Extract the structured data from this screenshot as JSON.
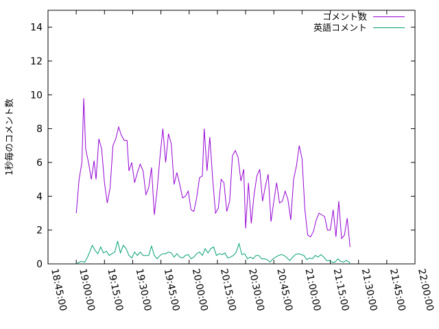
{
  "chart_data": {
    "type": "line",
    "ylabel": "1秒毎のコメント数",
    "xlabel": "",
    "ylim": [
      0,
      15
    ],
    "yticks": [
      0,
      2,
      4,
      6,
      8,
      10,
      12,
      14
    ],
    "xlim": [
      "18:45:00",
      "22:00:00"
    ],
    "xticks": [
      "18:45:00",
      "19:00:00",
      "19:15:00",
      "19:30:00",
      "19:45:00",
      "20:00:00",
      "20:15:00",
      "20:30:00",
      "20:45:00",
      "21:00:00",
      "21:15:00",
      "21:30:00",
      "21:45:00",
      "22:00:00"
    ],
    "legend_position": "top-right",
    "grid": false,
    "series": [
      {
        "name": "コメント数",
        "color": "#9400d3",
        "points": [
          [
            "19:00:00",
            3.0
          ],
          [
            "19:01:30",
            5.0
          ],
          [
            "19:03:00",
            6.0
          ],
          [
            "19:04:00",
            9.8
          ],
          [
            "19:05:00",
            6.8
          ],
          [
            "19:06:30",
            6.0
          ],
          [
            "19:08:00",
            5.0
          ],
          [
            "19:09:30",
            6.1
          ],
          [
            "19:10:30",
            5.0
          ],
          [
            "19:12:00",
            7.4
          ],
          [
            "19:13:30",
            6.8
          ],
          [
            "19:15:00",
            4.8
          ],
          [
            "19:16:30",
            3.6
          ],
          [
            "19:18:00",
            4.5
          ],
          [
            "19:19:30",
            7.0
          ],
          [
            "19:21:00",
            7.4
          ],
          [
            "19:22:30",
            8.1
          ],
          [
            "19:24:00",
            7.6
          ],
          [
            "19:25:30",
            7.3
          ],
          [
            "19:27:00",
            7.3
          ],
          [
            "19:28:00",
            5.5
          ],
          [
            "19:29:30",
            6.0
          ],
          [
            "19:31:00",
            4.8
          ],
          [
            "19:32:30",
            5.4
          ],
          [
            "19:34:00",
            5.9
          ],
          [
            "19:35:30",
            5.5
          ],
          [
            "19:37:00",
            4.1
          ],
          [
            "19:38:30",
            4.5
          ],
          [
            "19:40:00",
            5.7
          ],
          [
            "19:41:30",
            2.9
          ],
          [
            "19:43:00",
            4.4
          ],
          [
            "19:44:30",
            6.3
          ],
          [
            "19:46:00",
            8.0
          ],
          [
            "19:47:30",
            6.0
          ],
          [
            "19:49:00",
            7.7
          ],
          [
            "19:50:30",
            7.1
          ],
          [
            "19:52:00",
            4.7
          ],
          [
            "19:53:30",
            5.4
          ],
          [
            "19:55:00",
            4.7
          ],
          [
            "19:56:30",
            3.9
          ],
          [
            "19:58:00",
            4.0
          ],
          [
            "19:59:30",
            4.3
          ],
          [
            "20:01:00",
            3.2
          ],
          [
            "20:02:30",
            3.1
          ],
          [
            "20:04:00",
            3.9
          ],
          [
            "20:05:30",
            5.1
          ],
          [
            "20:07:00",
            5.2
          ],
          [
            "20:08:00",
            8.0
          ],
          [
            "20:09:30",
            5.5
          ],
          [
            "20:11:00",
            7.5
          ],
          [
            "20:12:30",
            5.0
          ],
          [
            "20:14:00",
            3.0
          ],
          [
            "20:15:30",
            3.3
          ],
          [
            "20:17:00",
            5.0
          ],
          [
            "20:18:30",
            4.8
          ],
          [
            "20:20:00",
            3.1
          ],
          [
            "20:21:30",
            3.7
          ],
          [
            "20:23:00",
            6.4
          ],
          [
            "20:24:30",
            6.7
          ],
          [
            "20:26:00",
            6.3
          ],
          [
            "20:27:30",
            4.9
          ],
          [
            "20:29:00",
            5.6
          ],
          [
            "20:30:00",
            2.1
          ],
          [
            "20:31:30",
            4.8
          ],
          [
            "20:33:00",
            2.4
          ],
          [
            "20:34:30",
            4.1
          ],
          [
            "20:36:00",
            5.2
          ],
          [
            "20:37:30",
            5.6
          ],
          [
            "20:39:00",
            3.7
          ],
          [
            "20:40:30",
            4.6
          ],
          [
            "20:42:00",
            5.3
          ],
          [
            "20:43:30",
            2.5
          ],
          [
            "20:45:00",
            3.7
          ],
          [
            "20:46:30",
            4.8
          ],
          [
            "20:48:00",
            3.6
          ],
          [
            "20:49:30",
            3.7
          ],
          [
            "20:51:00",
            4.3
          ],
          [
            "20:52:30",
            3.8
          ],
          [
            "20:54:00",
            2.6
          ],
          [
            "20:55:30",
            5.0
          ],
          [
            "20:57:00",
            5.8
          ],
          [
            "20:58:30",
            7.0
          ],
          [
            "21:00:00",
            6.2
          ],
          [
            "21:01:30",
            3.2
          ],
          [
            "21:03:00",
            1.7
          ],
          [
            "21:04:30",
            1.6
          ],
          [
            "21:06:00",
            1.9
          ],
          [
            "21:07:30",
            2.6
          ],
          [
            "21:09:00",
            3.0
          ],
          [
            "21:10:30",
            2.9
          ],
          [
            "21:12:00",
            2.8
          ],
          [
            "21:13:30",
            2.0
          ],
          [
            "21:15:00",
            2.0
          ],
          [
            "21:16:30",
            3.2
          ],
          [
            "21:18:00",
            1.6
          ],
          [
            "21:19:30",
            3.7
          ],
          [
            "21:21:00",
            1.5
          ],
          [
            "21:22:30",
            1.7
          ],
          [
            "21:24:00",
            2.7
          ],
          [
            "21:25:30",
            1.0
          ]
        ]
      },
      {
        "name": "英語コメント",
        "color": "#009e73",
        "points": [
          [
            "19:00:00",
            0.0
          ],
          [
            "19:01:30",
            0.1
          ],
          [
            "19:03:00",
            0.15
          ],
          [
            "19:04:30",
            0.1
          ],
          [
            "19:06:00",
            0.4
          ],
          [
            "19:07:30",
            0.8
          ],
          [
            "19:08:30",
            1.1
          ],
          [
            "19:10:00",
            0.8
          ],
          [
            "19:11:30",
            0.6
          ],
          [
            "19:13:00",
            1.0
          ],
          [
            "19:14:30",
            0.65
          ],
          [
            "19:16:00",
            0.75
          ],
          [
            "19:17:30",
            0.5
          ],
          [
            "19:19:00",
            0.6
          ],
          [
            "19:20:30",
            0.7
          ],
          [
            "19:22:00",
            1.35
          ],
          [
            "19:23:30",
            0.65
          ],
          [
            "19:25:00",
            1.1
          ],
          [
            "19:26:30",
            0.9
          ],
          [
            "19:28:00",
            0.5
          ],
          [
            "19:29:30",
            0.35
          ],
          [
            "19:31:00",
            0.7
          ],
          [
            "19:32:30",
            0.5
          ],
          [
            "19:34:00",
            0.7
          ],
          [
            "19:35:30",
            0.5
          ],
          [
            "19:37:00",
            0.5
          ],
          [
            "19:38:30",
            0.5
          ],
          [
            "19:40:00",
            1.05
          ],
          [
            "19:41:30",
            0.5
          ],
          [
            "19:43:00",
            0.3
          ],
          [
            "19:44:30",
            0.5
          ],
          [
            "19:46:00",
            0.6
          ],
          [
            "19:47:30",
            0.6
          ],
          [
            "19:49:00",
            0.7
          ],
          [
            "19:50:30",
            0.65
          ],
          [
            "19:52:00",
            0.4
          ],
          [
            "19:53:30",
            0.6
          ],
          [
            "19:55:00",
            0.4
          ],
          [
            "19:56:30",
            0.35
          ],
          [
            "19:58:00",
            0.5
          ],
          [
            "19:59:30",
            0.55
          ],
          [
            "20:01:00",
            0.3
          ],
          [
            "20:02:30",
            0.4
          ],
          [
            "20:04:00",
            0.6
          ],
          [
            "20:05:30",
            0.7
          ],
          [
            "20:07:00",
            0.5
          ],
          [
            "20:08:30",
            0.9
          ],
          [
            "20:10:00",
            0.65
          ],
          [
            "20:11:30",
            0.9
          ],
          [
            "20:13:00",
            1.0
          ],
          [
            "20:14:30",
            0.5
          ],
          [
            "20:16:00",
            0.6
          ],
          [
            "20:17:30",
            0.55
          ],
          [
            "20:19:00",
            0.65
          ],
          [
            "20:20:30",
            0.35
          ],
          [
            "20:22:00",
            0.4
          ],
          [
            "20:23:30",
            0.5
          ],
          [
            "20:25:00",
            0.7
          ],
          [
            "20:26:30",
            1.2
          ],
          [
            "20:28:00",
            0.55
          ],
          [
            "20:29:30",
            0.6
          ],
          [
            "20:31:00",
            0.3
          ],
          [
            "20:32:30",
            0.4
          ],
          [
            "20:34:00",
            0.3
          ],
          [
            "20:35:30",
            0.5
          ],
          [
            "20:37:00",
            0.5
          ],
          [
            "20:38:30",
            0.3
          ],
          [
            "20:40:00",
            0.3
          ],
          [
            "20:41:30",
            0.25
          ],
          [
            "20:43:00",
            0.1
          ],
          [
            "20:44:30",
            0.3
          ],
          [
            "20:46:00",
            0.4
          ],
          [
            "20:47:30",
            0.5
          ],
          [
            "20:49:00",
            0.55
          ],
          [
            "20:50:30",
            0.5
          ],
          [
            "20:52:00",
            0.35
          ],
          [
            "20:53:30",
            0.2
          ],
          [
            "20:55:00",
            0.4
          ],
          [
            "20:56:30",
            0.55
          ],
          [
            "20:58:00",
            0.6
          ],
          [
            "20:59:30",
            0.55
          ],
          [
            "21:01:00",
            0.5
          ],
          [
            "21:02:30",
            0.25
          ],
          [
            "21:04:00",
            0.35
          ],
          [
            "21:05:30",
            0.3
          ],
          [
            "21:07:00",
            0.5
          ],
          [
            "21:08:30",
            0.4
          ],
          [
            "21:10:00",
            0.55
          ],
          [
            "21:11:30",
            0.4
          ],
          [
            "21:13:00",
            0.2
          ],
          [
            "21:14:30",
            0.2
          ],
          [
            "21:16:00",
            0.1
          ],
          [
            "21:17:30",
            0.1
          ],
          [
            "21:19:00",
            0.3
          ],
          [
            "21:20:30",
            0.15
          ],
          [
            "21:22:00",
            0.1
          ],
          [
            "21:23:30",
            0.2
          ],
          [
            "21:25:00",
            0.1
          ],
          [
            "21:25:30",
            0.0
          ]
        ]
      }
    ]
  }
}
